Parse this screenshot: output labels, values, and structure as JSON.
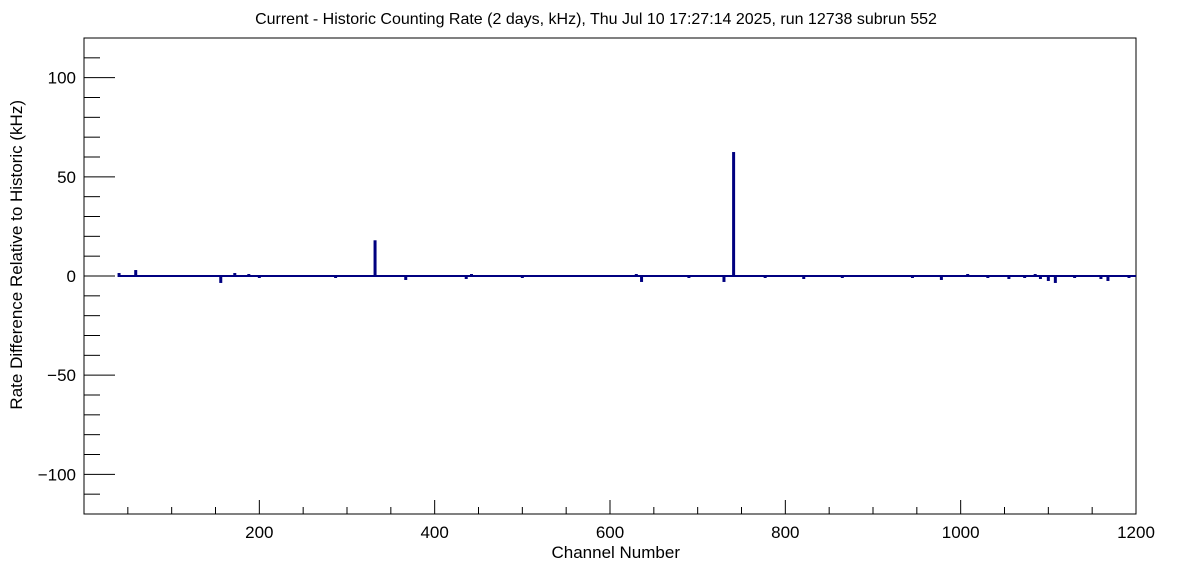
{
  "chart_data": {
    "type": "bar",
    "title": "Current - Historic Counting Rate (2 days, kHz), Thu Jul 10 17:27:14 2025, run 12738 subrun 552",
    "xlabel": "Channel Number",
    "ylabel": "Rate Difference Relative to Historic (kHz)",
    "xlim": [
      0,
      1200
    ],
    "ylim": [
      -120,
      120
    ],
    "x_major_ticks": [
      200,
      400,
      600,
      800,
      1000,
      1200
    ],
    "x_minor_step": 50,
    "y_major_ticks": [
      -100,
      -50,
      0,
      50,
      100
    ],
    "y_minor_step": 10,
    "baseline": [
      40,
      1200
    ],
    "grid": false,
    "legend": "none",
    "colors": {
      "series": "#000080",
      "axis": "#000000"
    },
    "series": [
      {
        "points": [
          {
            "x": 40,
            "y": 1.0
          },
          {
            "x": 59,
            "y": 2.5
          },
          {
            "x": 156,
            "y": -3.0
          },
          {
            "x": 172,
            "y": 1.0
          },
          {
            "x": 188,
            "y": 0.5
          },
          {
            "x": 200,
            "y": -0.5
          },
          {
            "x": 287,
            "y": -0.5
          },
          {
            "x": 332,
            "y": 17.5
          },
          {
            "x": 367,
            "y": -1.5
          },
          {
            "x": 436,
            "y": -1.0
          },
          {
            "x": 442,
            "y": 0.5
          },
          {
            "x": 500,
            "y": -0.5
          },
          {
            "x": 630,
            "y": 0.5
          },
          {
            "x": 636,
            "y": -2.5
          },
          {
            "x": 690,
            "y": -0.5
          },
          {
            "x": 730,
            "y": -2.5
          },
          {
            "x": 741,
            "y": 62.0
          },
          {
            "x": 777,
            "y": -0.5
          },
          {
            "x": 821,
            "y": -1.0
          },
          {
            "x": 865,
            "y": -0.5
          },
          {
            "x": 945,
            "y": -0.5
          },
          {
            "x": 978,
            "y": -1.5
          },
          {
            "x": 1008,
            "y": 0.5
          },
          {
            "x": 1031,
            "y": -0.5
          },
          {
            "x": 1055,
            "y": -1.0
          },
          {
            "x": 1073,
            "y": -0.5
          },
          {
            "x": 1085,
            "y": 0.5
          },
          {
            "x": 1091,
            "y": -1.0
          },
          {
            "x": 1100,
            "y": -2.0
          },
          {
            "x": 1108,
            "y": -3.0
          },
          {
            "x": 1130,
            "y": -0.5
          },
          {
            "x": 1160,
            "y": -1.0
          },
          {
            "x": 1168,
            "y": -2.0
          },
          {
            "x": 1192,
            "y": -0.5
          }
        ]
      }
    ]
  }
}
